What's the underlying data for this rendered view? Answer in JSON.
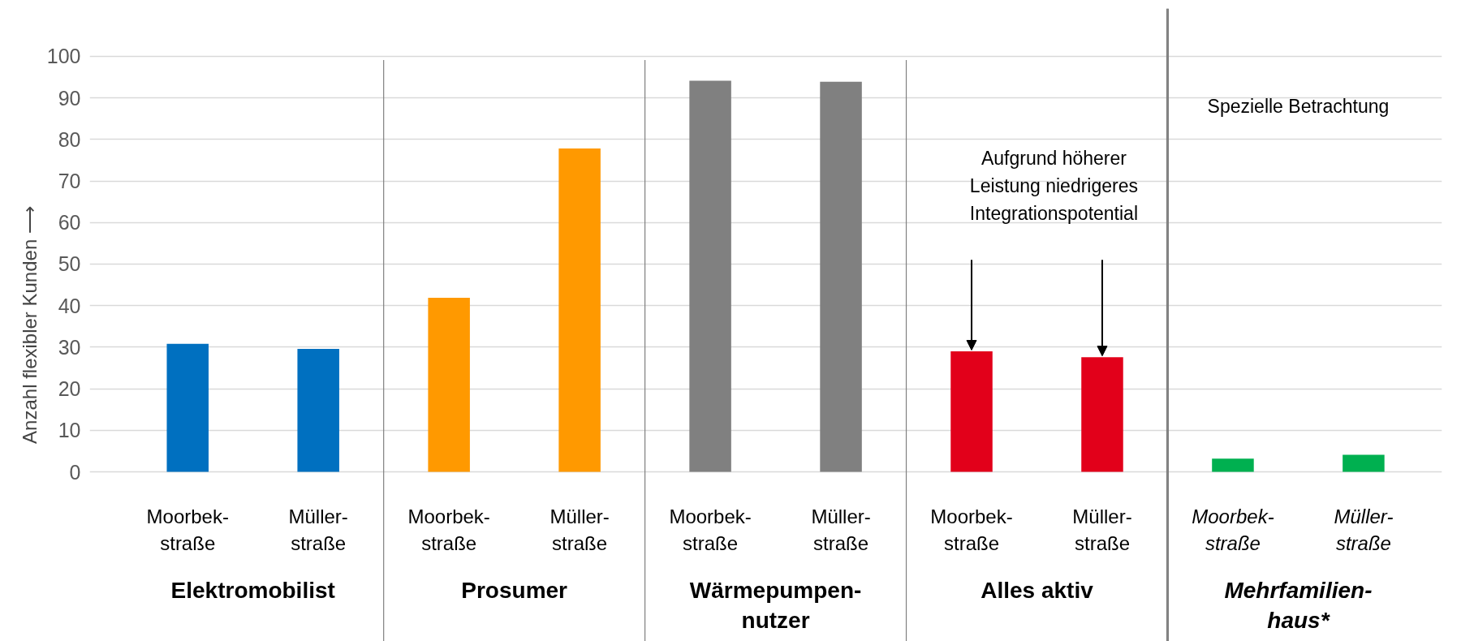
{
  "chart_data": {
    "type": "bar",
    "ylabel": "Anzahl flexibler Kunden ⟶",
    "categories": [
      "Moorbek-\nstraße",
      "Müller-\nstraße",
      "Moorbek-\nstraße",
      "Müller-\nstraße",
      "Moorbek-\nstraße",
      "Müller-\nstraße",
      "Moorbek-\nstraße",
      "Müller-\nstraße",
      "Moorbek-\nstraße",
      "Müller-\nstraße"
    ],
    "values": [
      30.8,
      29.6,
      41.9,
      77.8,
      94.1,
      93.9,
      29.0,
      27.6,
      3.2,
      4.1
    ],
    "colors": [
      "#0070c0",
      "#0070c0",
      "#ff9900",
      "#ff9900",
      "#808080",
      "#808080",
      "#e2001a",
      "#e2001a",
      "#00b050",
      "#00b050"
    ],
    "ylim": [
      0,
      100
    ],
    "yticks": [
      0,
      10,
      20,
      30,
      40,
      50,
      60,
      70,
      80,
      90,
      100
    ],
    "grid": "y",
    "annotations": [
      "Elektromobilist",
      "Prosumer",
      "Wärmepumpen-\nnutzer",
      "Alles aktiv",
      "Mehrfamilien-\nhaus*",
      "Spezielle Betrachtung",
      "Aufgrund höherer\nLeistung niedrigeres\nIntegrationspotential"
    ]
  }
}
